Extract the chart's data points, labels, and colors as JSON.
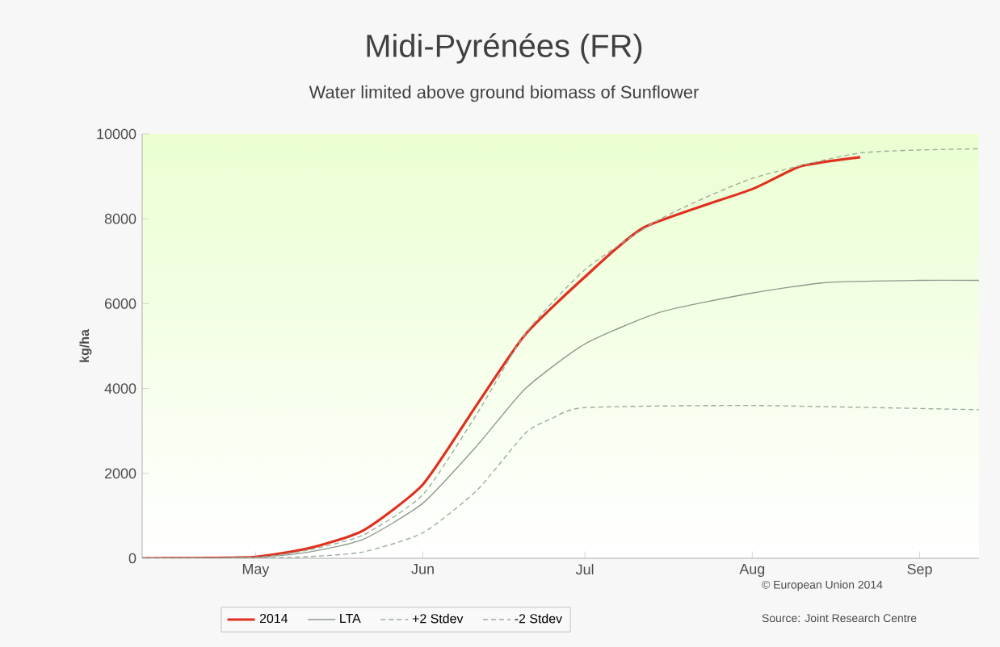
{
  "chart_data": {
    "type": "line",
    "title": "Midi-Pyrénées (FR)",
    "subtitle": "Water limited above ground biomass  of Sunflower",
    "ylabel": "kg/ha",
    "xlim": [
      "2014-04-10",
      "2014-09-12"
    ],
    "xticks": [
      {
        "value": "2014-05-01",
        "label": "May"
      },
      {
        "value": "2014-06-01",
        "label": "Jun"
      },
      {
        "value": "2014-07-01",
        "label": "Jul"
      },
      {
        "value": "2014-08-01",
        "label": "Aug"
      },
      {
        "value": "2014-09-01",
        "label": "Sep"
      }
    ],
    "ylim": [
      0,
      10000
    ],
    "yticks": [
      0,
      2000,
      4000,
      6000,
      8000,
      10000
    ],
    "legend": "bottom",
    "grid": false,
    "marker": "none",
    "series": [
      {
        "name": "2014",
        "color": "#e0301e",
        "line_style": "solid",
        "x": [
          "2014-04-10",
          "2014-04-20",
          "2014-05-01",
          "2014-05-11",
          "2014-05-21",
          "2014-06-01",
          "2014-06-11",
          "2014-06-20",
          "2014-07-01",
          "2014-07-12",
          "2014-08-01",
          "2014-08-10",
          "2014-08-21"
        ],
        "values": [
          0,
          5,
          30,
          240,
          660,
          1740,
          3620,
          5280,
          6630,
          7800,
          8700,
          9240,
          9450
        ]
      },
      {
        "name": "LTA",
        "color": "#8c9a8c",
        "line_style": "solid",
        "x": [
          "2014-04-10",
          "2014-05-01",
          "2014-05-11",
          "2014-05-21",
          "2014-06-01",
          "2014-06-11",
          "2014-06-20",
          "2014-07-01",
          "2014-07-15",
          "2014-08-01",
          "2014-08-15",
          "2014-09-01",
          "2014-09-12"
        ],
        "values": [
          0,
          20,
          150,
          450,
          1300,
          2650,
          4000,
          5050,
          5800,
          6250,
          6500,
          6550,
          6550
        ]
      },
      {
        "name": "+2 Stdev",
        "color": "#9aae9a",
        "line_style": "dashed",
        "x": [
          "2014-04-10",
          "2014-05-01",
          "2014-05-11",
          "2014-05-21",
          "2014-06-01",
          "2014-06-11",
          "2014-06-20",
          "2014-07-01",
          "2014-07-15",
          "2014-08-01",
          "2014-08-21",
          "2014-09-12"
        ],
        "values": [
          0,
          20,
          200,
          550,
          1500,
          3400,
          5300,
          6800,
          8000,
          8950,
          9550,
          9650
        ]
      },
      {
        "name": "-2 Stdev",
        "color": "#9aae9a",
        "line_style": "dashed",
        "x": [
          "2014-04-10",
          "2014-05-01",
          "2014-05-11",
          "2014-05-21",
          "2014-06-01",
          "2014-06-11",
          "2014-06-20",
          "2014-06-25",
          "2014-07-01",
          "2014-08-01",
          "2014-09-12"
        ],
        "values": [
          0,
          0,
          40,
          150,
          600,
          1600,
          2950,
          3300,
          3550,
          3600,
          3500
        ]
      }
    ],
    "annotations": [
      "© European Union 2014",
      "Source: Joint Research Centre"
    ]
  }
}
